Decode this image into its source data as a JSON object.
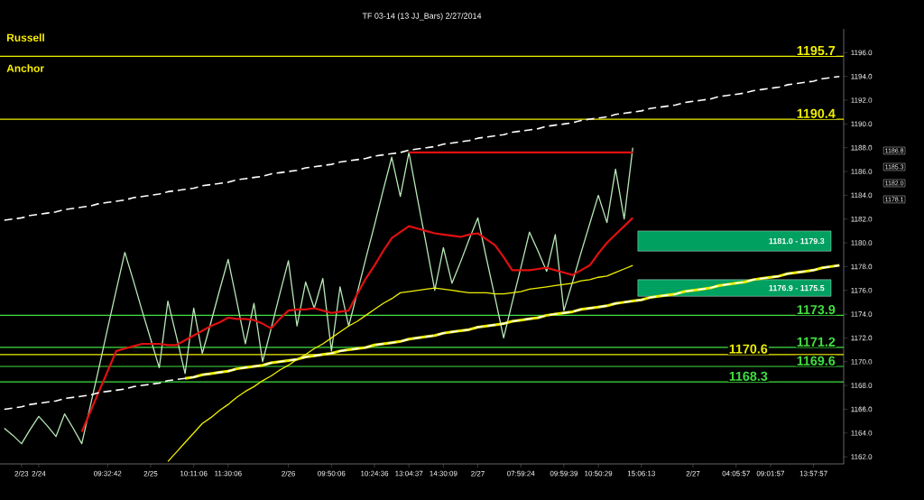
{
  "chart_data": {
    "type": "line",
    "title": "TF 03-14 (13 JJ_Bars)  2/27/2014",
    "categories": [
      null,
      null,
      "2/23",
      null,
      "2/24",
      null,
      null,
      null,
      null,
      null,
      null,
      null,
      "09:32:42",
      null,
      null,
      null,
      null,
      "2/25",
      null,
      null,
      null,
      null,
      "10:11:06",
      null,
      null,
      null,
      "11:30:06",
      null,
      null,
      null,
      null,
      null,
      null,
      "2/26",
      null,
      null,
      null,
      null,
      "09:50:06",
      null,
      null,
      null,
      null,
      "10:24:36",
      null,
      null,
      null,
      "13:04:37",
      null,
      null,
      null,
      "14:30:09",
      null,
      null,
      null,
      "2/27",
      null,
      null,
      null,
      null,
      "07:59:24",
      null,
      null,
      null,
      null,
      "09:59:39",
      null,
      null,
      null,
      "10:50:29",
      null,
      null,
      null,
      null,
      "15:06:13",
      null,
      null,
      null,
      null,
      null,
      "2/27",
      null,
      null,
      null,
      null,
      "04:05:57",
      null,
      null,
      null,
      "09:01:57",
      null,
      null,
      null,
      null,
      "13:57:57",
      null,
      null,
      null
    ],
    "ylim": [
      1161.4,
      1198
    ],
    "yticks": [
      {
        "value": 1162,
        "label": "1162.0"
      },
      {
        "value": 1164,
        "label": "1164.0"
      },
      {
        "value": 1166,
        "label": "1166.0"
      },
      {
        "value": 1168,
        "label": "1168.0"
      },
      {
        "value": 1170,
        "label": "1170.0"
      },
      {
        "value": 1172,
        "label": "1172.0"
      },
      {
        "value": 1174,
        "label": "1174.0"
      },
      {
        "value": 1176,
        "label": "1176.0"
      },
      {
        "value": 1178,
        "label": "1178.0"
      },
      {
        "value": 1180,
        "label": "1180.0"
      },
      {
        "value": 1182,
        "label": "1182.0"
      },
      {
        "value": 1184,
        "label": "1184.0"
      },
      {
        "value": 1186,
        "label": "1186.0"
      },
      {
        "value": 1188,
        "label": "1188.0"
      },
      {
        "value": 1190,
        "label": "1190.0"
      },
      {
        "value": 1192,
        "label": "1192.0"
      },
      {
        "value": 1194,
        "label": "1194.0"
      },
      {
        "value": 1196,
        "label": "1196.0"
      }
    ],
    "grid": false,
    "marker": "none",
    "series": [
      {
        "color": "#b8e8b8",
        "line_style": "solid",
        "values": [
          1164.4,
          1163.8,
          1163.1,
          1164.3,
          1165.4,
          1164.6,
          1163.7,
          1165.6,
          1164.4,
          1163.1,
          1166.3,
          1169.5,
          1172.8,
          1176.0,
          1179.2,
          1176.8,
          1174.3,
          1171.9,
          1169.5,
          1175.1,
          1172.1,
          1169.0,
          1174.5,
          1170.7,
          1173.3,
          1176.0,
          1178.6,
          1175.1,
          1171.5,
          1174.9,
          1170.0,
          1172.8,
          1175.7,
          1178.5,
          1173.0,
          1176.7,
          1174.5,
          1177.0,
          1170.9,
          1176.3,
          1173.0,
          1175.8,
          1178.7,
          1181.5,
          1184.4,
          1187.2,
          1183.9,
          1187.6,
          1183.7,
          1179.9,
          1176.0,
          1179.6,
          1176.6,
          1178.4,
          1180.3,
          1182.1,
          1178.7,
          1175.4,
          1172.0,
          1175.0,
          1177.9,
          1180.9,
          1179.3,
          1177.6,
          1180.7,
          1174.3,
          1176.7,
          1179.2,
          1181.6,
          1184.0,
          1181.7,
          1186.2,
          1182.0,
          1188.0,
          null,
          null,
          null,
          null,
          null,
          null,
          null,
          null,
          null,
          null,
          null,
          null,
          null,
          null,
          null,
          null,
          null,
          null,
          null,
          null,
          null,
          null,
          null,
          null
        ]
      },
      {
        "color": "#e01010",
        "line_style": "solid",
        "values": [
          null,
          null,
          null,
          null,
          null,
          null,
          null,
          null,
          null,
          1164.1,
          1165.8,
          1167.5,
          1169.2,
          1170.9,
          1171.1,
          1171.3,
          1171.5,
          1171.5,
          1171.5,
          1171.4,
          1171.4,
          1171.8,
          1172.2,
          1172.6,
          1173.0,
          1173.3,
          1173.7,
          1173.6,
          1173.6,
          1173.5,
          1173.2,
          1172.8,
          1173.6,
          1174.3,
          1174.4,
          1174.4,
          1174.5,
          1174.3,
          1174.1,
          1174.2,
          1174.3,
          1175.7,
          1177.0,
          1178.1,
          1179.3,
          1180.4,
          1180.9,
          1181.4,
          1181.2,
          1181.0,
          1180.8,
          1180.7,
          1180.6,
          1180.5,
          1180.7,
          1180.8,
          1180.3,
          1179.8,
          1178.8,
          1177.7,
          1177.7,
          1177.7,
          1177.8,
          1177.9,
          1177.7,
          1177.5,
          1177.3,
          1177.7,
          1178.1,
          1179.1,
          1180.0,
          1180.7,
          1181.4,
          1182.1,
          null,
          null,
          null,
          null,
          null,
          null,
          null,
          null,
          null,
          null,
          null,
          null,
          null,
          null,
          null,
          null,
          null,
          null,
          null,
          null,
          null,
          null,
          null,
          null
        ]
      },
      {
        "color": "#f0f000",
        "line_style": "solid",
        "values": [
          null,
          null,
          null,
          null,
          null,
          null,
          null,
          null,
          null,
          null,
          null,
          null,
          null,
          null,
          null,
          null,
          null,
          null,
          null,
          1161.6,
          1162.4,
          1163.2,
          1164.0,
          1164.8,
          1165.3,
          1165.9,
          1166.4,
          1167.0,
          1167.5,
          1167.9,
          1168.4,
          1168.8,
          1169.3,
          1169.7,
          1170.2,
          1170.6,
          1171.1,
          1171.5,
          1172.0,
          1172.5,
          1173.0,
          1173.4,
          1173.9,
          1174.4,
          1174.9,
          1175.3,
          1175.8,
          1175.9,
          1176.0,
          1176.1,
          1176.2,
          1176.1,
          1176.0,
          1175.9,
          1175.8,
          1175.8,
          1175.8,
          1175.7,
          1175.7,
          1175.8,
          1175.9,
          1176.1,
          1176.2,
          1176.3,
          1176.4,
          1176.5,
          1176.6,
          1176.8,
          1176.9,
          1177.1,
          1177.2,
          1177.5,
          1177.8,
          1178.1,
          null,
          null,
          null,
          null,
          null,
          null,
          null,
          null,
          null,
          null,
          null,
          null,
          null,
          null,
          null,
          null,
          null,
          null,
          null,
          null,
          null,
          null,
          null,
          null
        ]
      },
      {
        "color": "#ffffff",
        "line_style": "dashed",
        "values": [
          1181.9,
          1182.0,
          1182.1,
          1182.3,
          1182.4,
          1182.5,
          1182.6,
          1182.8,
          1182.9,
          1183.0,
          1183.1,
          1183.3,
          1183.4,
          1183.5,
          1183.6,
          1183.8,
          1183.9,
          1184.0,
          1184.1,
          1184.3,
          1184.4,
          1184.5,
          1184.6,
          1184.8,
          1184.9,
          1185.0,
          1185.1,
          1185.3,
          1185.4,
          1185.5,
          1185.6,
          1185.8,
          1185.9,
          1186.0,
          1186.1,
          1186.3,
          1186.4,
          1186.5,
          1186.6,
          1186.8,
          1186.9,
          1187.0,
          1187.1,
          1187.3,
          1187.4,
          1187.5,
          1187.6,
          1187.8,
          1187.9,
          1188.0,
          1188.1,
          1188.3,
          1188.4,
          1188.5,
          1188.6,
          1188.8,
          1188.9,
          1189.0,
          1189.1,
          1189.3,
          1189.4,
          1189.5,
          1189.6,
          1189.8,
          1189.9,
          1190.0,
          1190.1,
          1190.3,
          1190.4,
          1190.5,
          1190.6,
          1190.8,
          1190.9,
          1191.0,
          1191.1,
          1191.3,
          1191.4,
          1191.5,
          1191.6,
          1191.8,
          1191.9,
          1192.0,
          1192.1,
          1192.3,
          1192.4,
          1192.5,
          1192.6,
          1192.8,
          1192.9,
          1193.0,
          1193.1,
          1193.3,
          1193.4,
          1193.5,
          1193.6,
          1193.8,
          1193.9,
          1194.0
        ]
      },
      {
        "color": "#ffffff",
        "line_style": "dashed",
        "values": [
          1166.0,
          1166.1,
          1166.2,
          1166.4,
          1166.5,
          1166.6,
          1166.7,
          1166.9,
          1167.0,
          1167.1,
          1167.2,
          1167.4,
          1167.5,
          1167.6,
          1167.7,
          1167.9,
          1168.0,
          1168.1,
          1168.2,
          1168.4,
          1168.5,
          1168.6,
          1168.7,
          1168.9,
          1169.0,
          1169.1,
          1169.2,
          1169.4,
          1169.5,
          1169.6,
          1169.7,
          1169.9,
          1170.0,
          1170.1,
          1170.2,
          1170.4,
          1170.5,
          1170.6,
          1170.7,
          1170.9,
          1171.0,
          1171.1,
          1171.2,
          1171.4,
          1171.5,
          1171.6,
          1171.7,
          1171.9,
          1172.0,
          1172.1,
          1172.2,
          1172.4,
          1172.5,
          1172.6,
          1172.7,
          1172.9,
          1173.0,
          1173.1,
          1173.2,
          1173.4,
          1173.5,
          1173.6,
          1173.7,
          1173.9,
          1174.0,
          1174.1,
          1174.2,
          1174.4,
          1174.5,
          1174.6,
          1174.7,
          1174.9,
          1175.0,
          1175.1,
          1175.2,
          1175.4,
          1175.5,
          1175.6,
          1175.7,
          1175.9,
          1176.0,
          1176.1,
          1176.2,
          1176.4,
          1176.5,
          1176.6,
          1176.7,
          1176.9,
          1177.0,
          1177.1,
          1177.2,
          1177.4,
          1177.5,
          1177.6,
          1177.7,
          1177.9,
          1178.0,
          1178.1
        ]
      },
      {
        "color": "#f0f000",
        "line_style": "solid",
        "values": [
          null,
          null,
          null,
          null,
          null,
          null,
          null,
          null,
          null,
          null,
          null,
          null,
          null,
          null,
          null,
          null,
          null,
          null,
          null,
          null,
          null,
          1168.6,
          1168.7,
          1168.9,
          1169.0,
          1169.1,
          1169.2,
          1169.4,
          1169.5,
          1169.6,
          1169.7,
          1169.9,
          1170.0,
          1170.1,
          1170.2,
          1170.4,
          1170.5,
          1170.6,
          1170.7,
          1170.9,
          1171.0,
          1171.1,
          1171.2,
          1171.4,
          1171.5,
          1171.6,
          1171.7,
          1171.9,
          1172.0,
          1172.1,
          1172.2,
          1172.4,
          1172.5,
          1172.6,
          1172.7,
          1172.9,
          1173.0,
          1173.1,
          1173.2,
          1173.4,
          1173.5,
          1173.6,
          1173.7,
          1173.9,
          1174.0,
          1174.1,
          1174.2,
          1174.4,
          1174.5,
          1174.6,
          1174.7,
          1174.9,
          1175.0,
          1175.1,
          1175.2,
          1175.4,
          1175.5,
          1175.6,
          1175.7,
          1175.9,
          1176.0,
          1176.1,
          1176.2,
          1176.4,
          1176.5,
          1176.6,
          1176.7,
          1176.9,
          1177.0,
          1177.1,
          1177.2,
          1177.4,
          1177.5,
          1177.6,
          1177.7,
          1177.9,
          1178.0,
          1178.1
        ]
      },
      {
        "color": "#e01010",
        "line_style": "solid",
        "values": [
          null,
          null,
          null,
          null,
          null,
          null,
          null,
          null,
          null,
          null,
          null,
          null,
          null,
          null,
          null,
          null,
          null,
          null,
          null,
          null,
          null,
          null,
          null,
          null,
          null,
          null,
          null,
          null,
          null,
          null,
          null,
          null,
          null,
          null,
          null,
          null,
          null,
          null,
          null,
          null,
          null,
          null,
          null,
          null,
          null,
          null,
          null,
          1187.6,
          1187.6,
          1187.6,
          1187.6,
          1187.6,
          1187.6,
          1187.6,
          1187.6,
          1187.6,
          1187.6,
          1187.6,
          1187.6,
          1187.6,
          1187.6,
          1187.6,
          1187.6,
          1187.6,
          1187.6,
          1187.6,
          1187.6,
          1187.6,
          1187.6,
          1187.6,
          1187.6,
          1187.6,
          1187.6,
          1187.6,
          null,
          null,
          null,
          null,
          null,
          null,
          null,
          null,
          null,
          null,
          null,
          null,
          null,
          null,
          null,
          null,
          null,
          null,
          null,
          null,
          null,
          null,
          null,
          null
        ]
      }
    ],
    "ref_lines": [
      {
        "axis": "y",
        "value": 1195.7,
        "label": "1195.7",
        "color": "#f0f000"
      },
      {
        "axis": "y",
        "value": 1190.4,
        "label": "1190.4",
        "color": "#f0f000"
      },
      {
        "axis": "y",
        "value": 1173.9,
        "label": "1173.9",
        "color": "#40e040"
      },
      {
        "axis": "y",
        "value": 1171.2,
        "label": "1171.2",
        "color": "#40e040"
      },
      {
        "axis": "y",
        "value": 1170.6,
        "label": "1170.6",
        "color": "#f0f000"
      },
      {
        "axis": "y",
        "value": 1169.6,
        "label": "1169.6",
        "color": "#40e040"
      },
      {
        "axis": "y",
        "value": 1168.3,
        "label": "1168.3",
        "color": "#40e040"
      }
    ],
    "bands": [
      {
        "axis": "y",
        "from": 1179.3,
        "to": 1181.0,
        "label": "1181.0 - 1179.3",
        "color": "#00a060"
      },
      {
        "axis": "y",
        "from": 1175.5,
        "to": 1176.9,
        "label": "1176.9 - 1175.5",
        "color": "#00a060"
      }
    ],
    "annotations": [
      "Russell",
      "Anchor",
      "1186.8",
      "1185.3",
      "1182.0",
      "1178.1"
    ]
  }
}
